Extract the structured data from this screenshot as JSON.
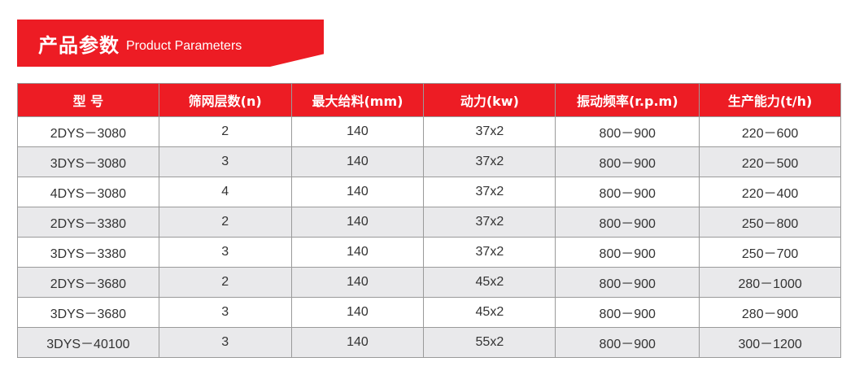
{
  "title": {
    "cn": "产品参数",
    "en": "Product Parameters"
  },
  "colors": {
    "accent": "#ed1c24",
    "alt_row": "#e9e9eb"
  },
  "table": {
    "headers": [
      "型 号",
      "筛网层数(n)",
      "最大给料(mm)",
      "动力(kw)",
      "振动频率(r.p.m)",
      "生产能力(t/h)"
    ],
    "rows": [
      [
        "2DYS－3080",
        "2",
        "140",
        "37x2",
        "800－900",
        "220－600"
      ],
      [
        "3DYS－3080",
        "3",
        "140",
        "37x2",
        "800－900",
        "220－500"
      ],
      [
        "4DYS－3080",
        "4",
        "140",
        "37x2",
        "800－900",
        "220－400"
      ],
      [
        "2DYS－3380",
        "2",
        "140",
        "37x2",
        "800－900",
        "250－800"
      ],
      [
        "3DYS－3380",
        "3",
        "140",
        "37x2",
        "800－900",
        "250－700"
      ],
      [
        "2DYS－3680",
        "2",
        "140",
        "45x2",
        "800－900",
        "280－1000"
      ],
      [
        "3DYS－3680",
        "3",
        "140",
        "45x2",
        "800－900",
        "280－900"
      ],
      [
        "3DYS－40100",
        "3",
        "140",
        "55x2",
        "800－900",
        "300－1200"
      ]
    ]
  }
}
